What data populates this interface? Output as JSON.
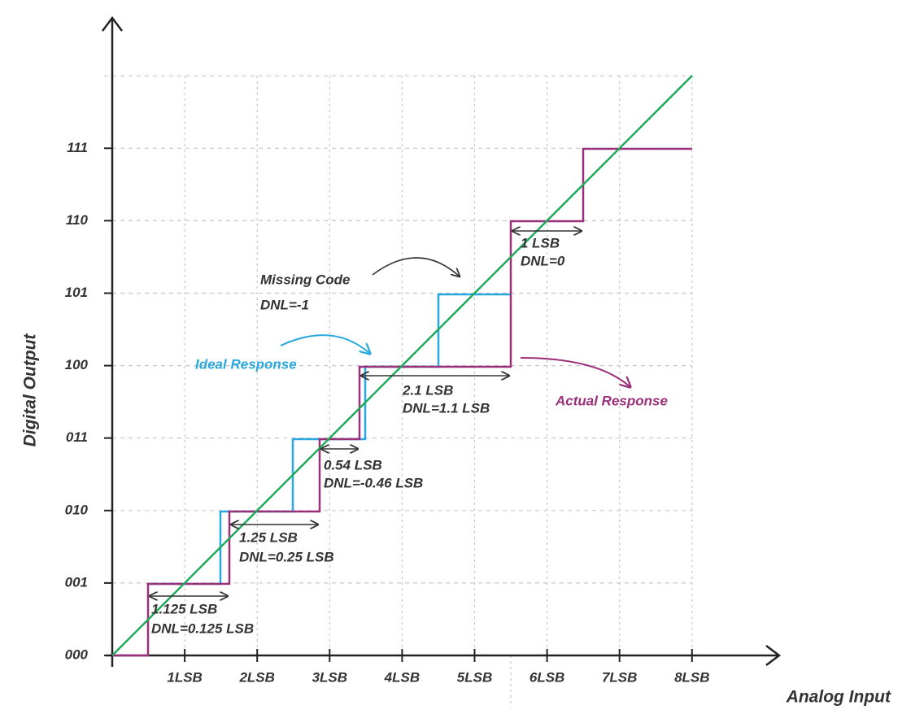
{
  "axes": {
    "y_label": "Digital Output",
    "x_label": "Analog Input",
    "y_ticks": [
      "000",
      "001",
      "010",
      "011",
      "100",
      "101",
      "110",
      "111"
    ],
    "x_ticks": [
      "1LSB",
      "2LSB",
      "3LSB",
      "4LSB",
      "5LSB",
      "6LSB",
      "7LSB",
      "8LSB"
    ]
  },
  "annotations": [
    {
      "width": "1.125 LSB",
      "dnl": "DNL=0.125 LSB"
    },
    {
      "width": "1.25 LSB",
      "dnl": "DNL=0.25 LSB"
    },
    {
      "width": "0.54 LSB",
      "dnl": "DNL=-0.46 LSB"
    },
    {
      "width": "2.1 LSB",
      "dnl": "DNL=1.1 LSB"
    },
    {
      "width": "1 LSB",
      "dnl": "DNL=0"
    }
  ],
  "missing_code": {
    "label": "Missing Code",
    "dnl": "DNL=-1"
  },
  "ideal_response": "Ideal Response",
  "actual_response": "Actual Response"
}
